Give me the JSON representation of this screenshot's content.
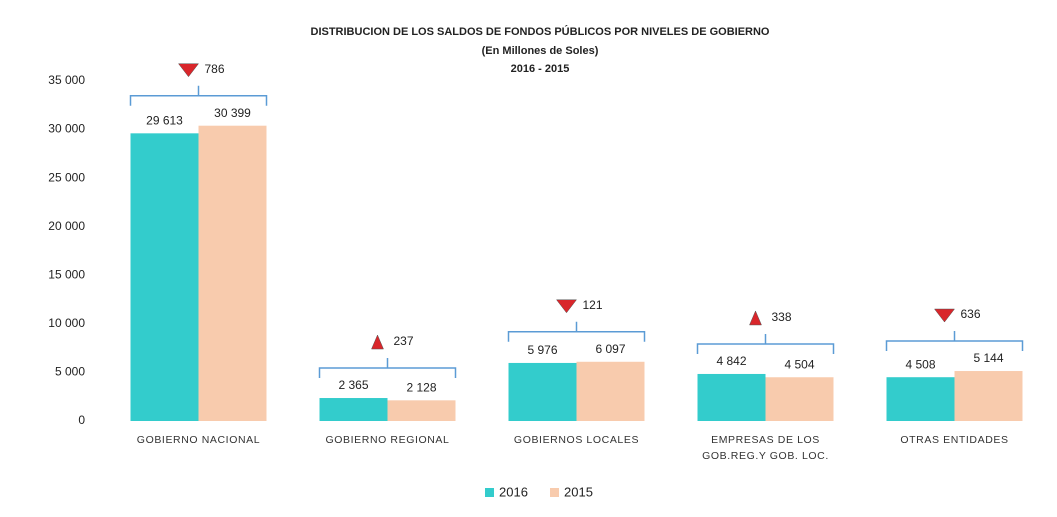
{
  "chart_data": {
    "type": "bar",
    "title": "DISTRIBUCION DE LOS SALDOS DE FONDOS PÚBLICOS POR NIVELES DE GOBIERNO",
    "subtitle": "(En Millones de Soles)",
    "period": "2016 - 2015",
    "categories": [
      "GOBIERNO NACIONAL",
      "GOBIERNO REGIONAL",
      "GOBIERNOS LOCALES",
      "EMPRESAS DE LOS GOB.REG.Y GOB. LOC.",
      "OTRAS ENTIDADES"
    ],
    "series": [
      {
        "name": "2016",
        "color": "#33cccc",
        "values": [
          29613,
          2365,
          5976,
          4842,
          4508
        ],
        "value_labels": [
          "29 613",
          "2 365",
          "5 976",
          "4 842",
          "4 508"
        ]
      },
      {
        "name": "2015",
        "color": "#f8cbad",
        "values": [
          30399,
          2128,
          6097,
          4504,
          5144
        ],
        "value_labels": [
          "30 399",
          "2 128",
          "6 097",
          "4 504",
          "5 144"
        ]
      }
    ],
    "annotations": [
      {
        "value": 786,
        "direction": "down"
      },
      {
        "value": 237,
        "direction": "up"
      },
      {
        "value": 121,
        "direction": "down"
      },
      {
        "value": 338,
        "direction": "up"
      },
      {
        "value": 636,
        "direction": "down"
      }
    ],
    "ylim": [
      0,
      35000
    ],
    "yticks": [
      0,
      {
        "value": 5000,
        "label": "5 000"
      },
      {
        "value": 10000,
        "label": "10 000"
      },
      {
        "value": 15000,
        "label": "15 000"
      },
      {
        "value": 20000,
        "label": "20 000"
      },
      {
        "value": 25000,
        "label": "25 000"
      },
      {
        "value": 30000,
        "label": "30 000"
      },
      {
        "value": 35000,
        "label": "35 000"
      }
    ],
    "grid": false,
    "legend": "bottom"
  }
}
